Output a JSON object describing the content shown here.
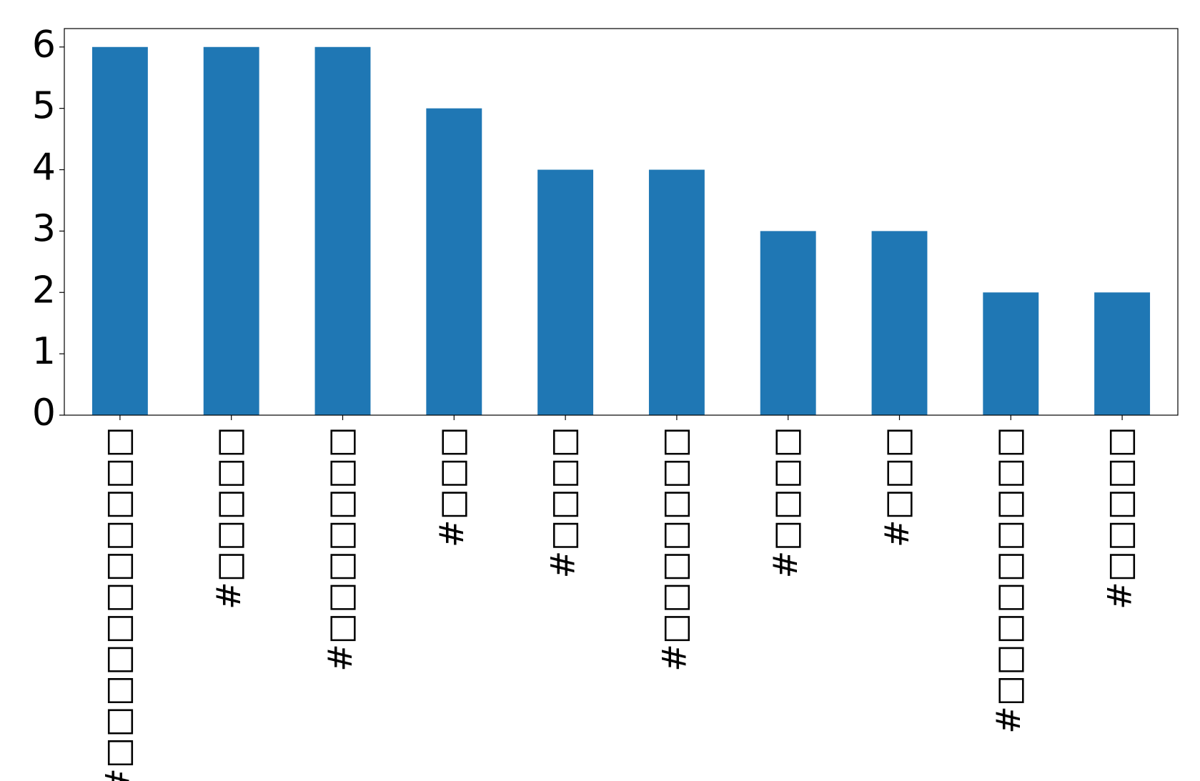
{
  "chart_data": {
    "type": "bar",
    "categories": [
      "#□□□□□□□□□□□",
      "#□□□□□",
      "#□□□□□□□",
      "#□□□",
      "#□□□□",
      "#□□□□□□□",
      "#□□□□",
      "#□□□",
      "#□□□□□□□□□",
      "#□□□□□"
    ],
    "values": [
      6,
      6,
      6,
      5,
      4,
      4,
      3,
      3,
      2,
      2
    ],
    "color": "#1f77b4",
    "ylim": [
      0,
      6.3
    ],
    "yticks": [
      0,
      1,
      2,
      3,
      4,
      5,
      6
    ],
    "grid": false
  }
}
